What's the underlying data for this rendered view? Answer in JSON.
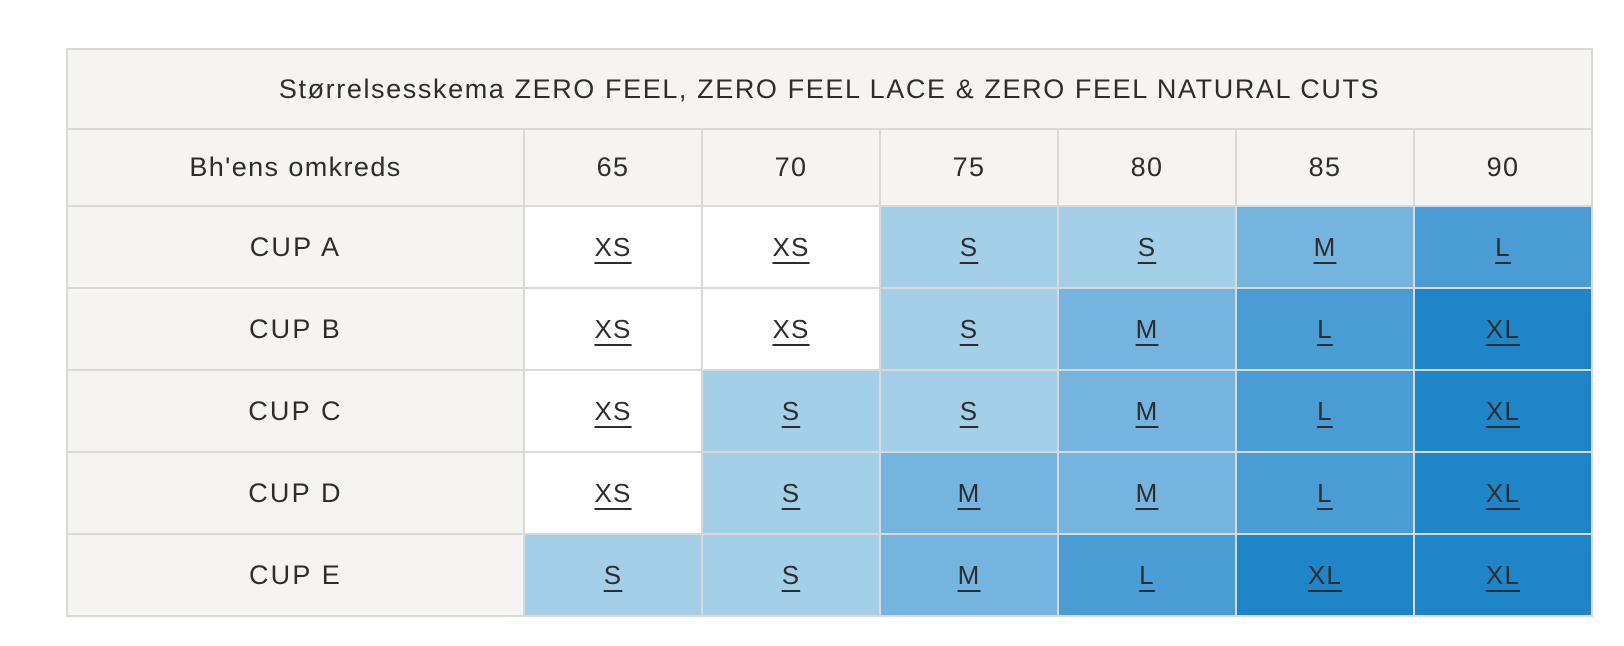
{
  "table": {
    "title": "Størrelsesskema ZERO FEEL, ZERO FEEL LACE & ZERO FEEL NATURAL CUTS",
    "header": {
      "row_label": "Bh'ens omkreds",
      "columns": [
        "65",
        "70",
        "75",
        "80",
        "85",
        "90"
      ]
    },
    "rows": [
      {
        "label": "CUP A",
        "sizes": [
          "XS",
          "XS",
          "S",
          "S",
          "M",
          "L"
        ]
      },
      {
        "label": "CUP B",
        "sizes": [
          "XS",
          "XS",
          "S",
          "M",
          "L",
          "XL"
        ]
      },
      {
        "label": "CUP C",
        "sizes": [
          "XS",
          "S",
          "S",
          "M",
          "L",
          "XL"
        ]
      },
      {
        "label": "CUP D",
        "sizes": [
          "XS",
          "S",
          "M",
          "M",
          "L",
          "XL"
        ]
      },
      {
        "label": "CUP E",
        "sizes": [
          "S",
          "S",
          "M",
          "L",
          "XL",
          "XL"
        ]
      }
    ],
    "size_colors": {
      "XS": "#ffffff",
      "S": "#a3cfe8",
      "M": "#74b4de",
      "L": "#4a9cd4",
      "XL": "#1e86c8"
    },
    "colors": {
      "header_bg": "#f5f4f2",
      "grid_line": "#dcd8d5",
      "outer_line": "#c9c4c1",
      "text": "#2e2d2c"
    }
  },
  "chart_data": {
    "type": "table",
    "title": "Størrelsesskema ZERO FEEL, ZERO FEEL LACE & ZERO FEEL NATURAL CUTS",
    "columns": [
      "Bh'ens omkreds",
      "65",
      "70",
      "75",
      "80",
      "85",
      "90"
    ],
    "rows": [
      [
        "CUP A",
        "XS",
        "XS",
        "S",
        "S",
        "M",
        "L"
      ],
      [
        "CUP B",
        "XS",
        "XS",
        "S",
        "M",
        "L",
        "XL"
      ],
      [
        "CUP C",
        "XS",
        "S",
        "S",
        "M",
        "L",
        "XL"
      ],
      [
        "CUP D",
        "XS",
        "S",
        "M",
        "M",
        "L",
        "XL"
      ],
      [
        "CUP E",
        "S",
        "S",
        "M",
        "L",
        "XL",
        "XL"
      ]
    ]
  }
}
